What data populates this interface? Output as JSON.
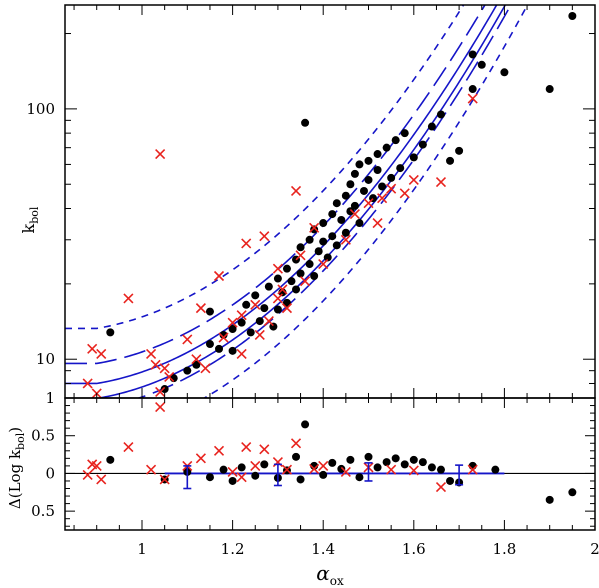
{
  "chart_data": [
    {
      "type": "scatter",
      "panel": "top",
      "ylabel": "k",
      "ylabel_sub": "bol",
      "yscale": "log",
      "xlim": [
        0.83,
        2.0
      ],
      "ylim": [
        7.0,
        260.0
      ],
      "ytick_labels": [
        {
          "value": 10,
          "label": "10"
        },
        {
          "value": 100,
          "label": "100"
        }
      ],
      "series": [
        {
          "marker": "filled-circle",
          "color": "#000000",
          "points": [
            [
              0.93,
              12.8
            ],
            [
              1.05,
              7.6
            ],
            [
              1.07,
              8.4
            ],
            [
              1.1,
              9.0
            ],
            [
              1.12,
              9.5
            ],
            [
              1.15,
              11.5
            ],
            [
              1.15,
              15.5
            ],
            [
              1.17,
              11.0
            ],
            [
              1.18,
              12.5
            ],
            [
              1.2,
              13.2
            ],
            [
              1.2,
              10.8
            ],
            [
              1.22,
              14.0
            ],
            [
              1.23,
              16.5
            ],
            [
              1.24,
              12.8
            ],
            [
              1.25,
              18.0
            ],
            [
              1.26,
              14.2
            ],
            [
              1.27,
              16.0
            ],
            [
              1.28,
              19.5
            ],
            [
              1.29,
              13.5
            ],
            [
              1.3,
              15.8
            ],
            [
              1.3,
              21.0
            ],
            [
              1.31,
              18.5
            ],
            [
              1.32,
              23.0
            ],
            [
              1.32,
              16.8
            ],
            [
              1.33,
              20.5
            ],
            [
              1.34,
              25.0
            ],
            [
              1.34,
              19.0
            ],
            [
              1.35,
              22.0
            ],
            [
              1.35,
              28.0
            ],
            [
              1.36,
              88.0
            ],
            [
              1.37,
              24.0
            ],
            [
              1.37,
              30.0
            ],
            [
              1.38,
              21.5
            ],
            [
              1.38,
              33.0
            ],
            [
              1.39,
              27.0
            ],
            [
              1.4,
              29.5
            ],
            [
              1.4,
              35.0
            ],
            [
              1.41,
              25.5
            ],
            [
              1.42,
              38.0
            ],
            [
              1.42,
              31.0
            ],
            [
              1.43,
              42.0
            ],
            [
              1.43,
              28.5
            ],
            [
              1.44,
              36.0
            ],
            [
              1.45,
              45.0
            ],
            [
              1.45,
              32.0
            ],
            [
              1.46,
              50.0
            ],
            [
              1.46,
              39.0
            ],
            [
              1.47,
              55.0
            ],
            [
              1.47,
              41.0
            ],
            [
              1.48,
              60.0
            ],
            [
              1.48,
              35.0
            ],
            [
              1.49,
              47.0
            ],
            [
              1.5,
              52.0
            ],
            [
              1.5,
              62.0
            ],
            [
              1.51,
              44.0
            ],
            [
              1.52,
              57.0
            ],
            [
              1.52,
              66.0
            ],
            [
              1.53,
              49.0
            ],
            [
              1.54,
              70.0
            ],
            [
              1.55,
              53.0
            ],
            [
              1.56,
              75.0
            ],
            [
              1.57,
              58.0
            ],
            [
              1.58,
              80.0
            ],
            [
              1.6,
              64.0
            ],
            [
              1.62,
              72.0
            ],
            [
              1.64,
              85.0
            ],
            [
              1.66,
              95.0
            ],
            [
              1.68,
              62.0
            ],
            [
              1.7,
              68.0
            ],
            [
              1.73,
              120.0
            ],
            [
              1.73,
              165.0
            ],
            [
              1.75,
              150.0
            ],
            [
              1.8,
              140.0
            ],
            [
              1.9,
              120.0
            ],
            [
              1.95,
              235.0
            ]
          ]
        },
        {
          "marker": "x-cross",
          "color": "#e8231e",
          "points": [
            [
              0.88,
              8.0
            ],
            [
              0.89,
              11.0
            ],
            [
              0.91,
              10.5
            ],
            [
              0.9,
              7.3
            ],
            [
              0.97,
              17.5
            ],
            [
              1.02,
              10.5
            ],
            [
              1.03,
              9.5
            ],
            [
              1.04,
              7.4
            ],
            [
              1.04,
              66.0
            ],
            [
              1.05,
              9.2
            ],
            [
              1.06,
              8.5
            ],
            [
              1.1,
              12.0
            ],
            [
              1.12,
              10.0
            ],
            [
              1.13,
              16.0
            ],
            [
              1.14,
              9.2
            ],
            [
              1.17,
              21.5
            ],
            [
              1.18,
              12.2
            ],
            [
              1.2,
              14.0
            ],
            [
              1.22,
              10.5
            ],
            [
              1.22,
              15.0
            ],
            [
              1.23,
              29.0
            ],
            [
              1.25,
              16.5
            ],
            [
              1.26,
              12.5
            ],
            [
              1.27,
              31.0
            ],
            [
              1.28,
              14.2
            ],
            [
              1.3,
              23.0
            ],
            [
              1.3,
              17.5
            ],
            [
              1.31,
              19.0
            ],
            [
              1.32,
              16.0
            ],
            [
              1.34,
              47.0
            ],
            [
              1.35,
              26.0
            ],
            [
              1.36,
              20.5
            ],
            [
              1.38,
              33.5
            ],
            [
              1.4,
              24.0
            ],
            [
              1.45,
              30.0
            ],
            [
              1.47,
              38.0
            ],
            [
              1.5,
              42.0
            ],
            [
              1.52,
              35.0
            ],
            [
              1.53,
              44.0
            ],
            [
              1.55,
              48.0
            ],
            [
              1.58,
              46.0
            ],
            [
              1.6,
              52.0
            ],
            [
              1.66,
              51.0
            ],
            [
              1.73,
              110.0
            ]
          ]
        }
      ],
      "curves": [
        {
          "style": "solid",
          "color": "#1515c8"
        },
        {
          "style": "long-dash",
          "color": "#1515c8"
        },
        {
          "style": "short-dash",
          "color": "#1515c8"
        }
      ]
    },
    {
      "type": "scatter",
      "panel": "bottom",
      "ylabel": "Δ(Log k",
      "ylabel_sub": "bol",
      "ylabel_tail": ")",
      "xlabel": "α",
      "xlabel_sub": "ox",
      "xlim": [
        0.83,
        2.0
      ],
      "ylim": [
        -0.75,
        1.0
      ],
      "xtick_labels": [
        {
          "value": 1.0,
          "label": "1"
        },
        {
          "value": 1.2,
          "label": "1.2"
        },
        {
          "value": 1.4,
          "label": "1.4"
        },
        {
          "value": 1.6,
          "label": "1.6"
        },
        {
          "value": 1.8,
          "label": "1.8"
        },
        {
          "value": 2.0,
          "label": "2"
        }
      ],
      "ytick_labels": [
        {
          "value": 1.0,
          "label": "1"
        },
        {
          "value": 0.5,
          "label": "0.5"
        },
        {
          "value": 0.0,
          "label": "0"
        },
        {
          "value": -0.5,
          "label": "0.5"
        }
      ],
      "series": [
        {
          "marker": "filled-circle",
          "color": "#000000",
          "points": [
            [
              0.93,
              0.18
            ],
            [
              1.05,
              -0.08
            ],
            [
              1.1,
              0.02
            ],
            [
              1.15,
              -0.05
            ],
            [
              1.18,
              0.05
            ],
            [
              1.2,
              -0.1
            ],
            [
              1.22,
              0.08
            ],
            [
              1.25,
              -0.03
            ],
            [
              1.27,
              0.12
            ],
            [
              1.3,
              -0.06
            ],
            [
              1.32,
              0.04
            ],
            [
              1.34,
              0.22
            ],
            [
              1.35,
              -0.08
            ],
            [
              1.36,
              0.65
            ],
            [
              1.38,
              0.1
            ],
            [
              1.4,
              -0.02
            ],
            [
              1.42,
              0.14
            ],
            [
              1.44,
              0.06
            ],
            [
              1.46,
              0.18
            ],
            [
              1.48,
              -0.05
            ],
            [
              1.5,
              0.22
            ],
            [
              1.52,
              0.08
            ],
            [
              1.54,
              0.15
            ],
            [
              1.56,
              0.2
            ],
            [
              1.58,
              0.12
            ],
            [
              1.6,
              0.18
            ],
            [
              1.62,
              0.15
            ],
            [
              1.64,
              0.08
            ],
            [
              1.66,
              0.05
            ],
            [
              1.68,
              -0.1
            ],
            [
              1.7,
              -0.12
            ],
            [
              1.73,
              0.1
            ],
            [
              1.78,
              0.05
            ],
            [
              1.9,
              -0.35
            ],
            [
              1.95,
              -0.25
            ]
          ]
        },
        {
          "marker": "x-cross",
          "color": "#e8231e",
          "points": [
            [
              0.88,
              -0.02
            ],
            [
              0.89,
              0.12
            ],
            [
              0.9,
              0.1
            ],
            [
              0.91,
              -0.08
            ],
            [
              0.97,
              0.35
            ],
            [
              1.02,
              0.05
            ],
            [
              1.04,
              0.88
            ],
            [
              1.05,
              -0.08
            ],
            [
              1.1,
              0.1
            ],
            [
              1.13,
              0.2
            ],
            [
              1.17,
              0.3
            ],
            [
              1.2,
              0.02
            ],
            [
              1.22,
              -0.05
            ],
            [
              1.23,
              0.35
            ],
            [
              1.25,
              0.1
            ],
            [
              1.27,
              0.32
            ],
            [
              1.3,
              0.15
            ],
            [
              1.32,
              0.05
            ],
            [
              1.34,
              0.4
            ],
            [
              1.38,
              0.06
            ],
            [
              1.4,
              0.1
            ],
            [
              1.45,
              0.02
            ],
            [
              1.5,
              0.08
            ],
            [
              1.55,
              0.05
            ],
            [
              1.6,
              0.04
            ],
            [
              1.66,
              -0.18
            ],
            [
              1.73,
              0.05
            ]
          ]
        }
      ],
      "error_bars": [
        {
          "x": 1.1,
          "y": -0.05,
          "yerr": 0.15
        },
        {
          "x": 1.3,
          "y": -0.02,
          "yerr": 0.14
        },
        {
          "x": 1.5,
          "y": 0.02,
          "yerr": 0.12
        },
        {
          "x": 1.7,
          "y": -0.02,
          "yerr": 0.13
        }
      ],
      "zero_line": true
    }
  ]
}
